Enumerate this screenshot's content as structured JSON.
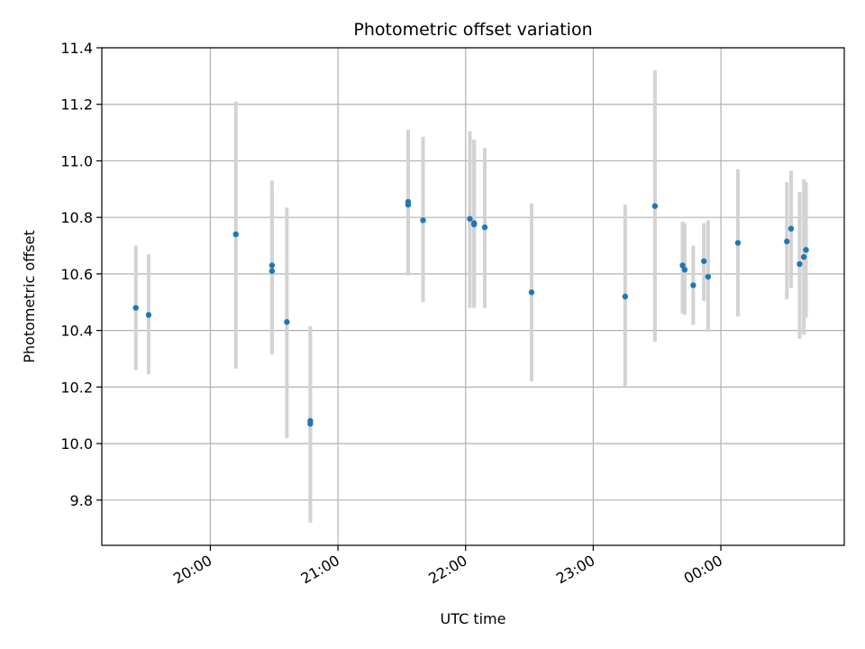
{
  "chart_data": {
    "type": "scatter",
    "title": "Photometric offset variation",
    "xlabel": "UTC time",
    "ylabel": "Photometric offset",
    "xlim": [
      "19:09",
      "00:58"
    ],
    "ylim": [
      9.64,
      11.4
    ],
    "x_ticks": [
      "20:00",
      "21:00",
      "22:00",
      "23:00",
      "00:00"
    ],
    "y_ticks": [
      "9.8",
      "10.0",
      "10.2",
      "10.4",
      "10.6",
      "10.8",
      "11.0",
      "11.2",
      "11.4"
    ],
    "grid": true,
    "colors": {
      "points": "#1f77b4",
      "error_bars": "#d3d3d3"
    },
    "points": [
      {
        "x": "19:25",
        "y": 10.48,
        "err_low": 10.26,
        "err_high": 10.7
      },
      {
        "x": "19:31",
        "y": 10.455,
        "err_low": 10.245,
        "err_high": 10.67
      },
      {
        "x": "20:12",
        "y": 10.74,
        "err_low": 10.265,
        "err_high": 11.21
      },
      {
        "x": "20:29",
        "y": 10.63,
        "err_low": 10.33,
        "err_high": 10.93
      },
      {
        "x": "20:29",
        "y": 10.61,
        "err_low": 10.315,
        "err_high": 10.9
      },
      {
        "x": "20:36",
        "y": 10.43,
        "err_low": 10.02,
        "err_high": 10.835
      },
      {
        "x": "20:47",
        "y": 10.08,
        "err_low": 9.72,
        "err_high": 10.415
      },
      {
        "x": "20:47",
        "y": 10.07,
        "err_low": 9.73,
        "err_high": 10.405
      },
      {
        "x": "21:33",
        "y": 10.855,
        "err_low": 10.595,
        "err_high": 11.11
      },
      {
        "x": "21:33",
        "y": 10.845,
        "err_low": 10.6,
        "err_high": 11.1
      },
      {
        "x": "21:40",
        "y": 10.79,
        "err_low": 10.5,
        "err_high": 11.085
      },
      {
        "x": "22:02",
        "y": 10.795,
        "err_low": 10.48,
        "err_high": 11.105
      },
      {
        "x": "22:04",
        "y": 10.78,
        "err_low": 10.48,
        "err_high": 11.075
      },
      {
        "x": "22:04",
        "y": 10.775,
        "err_low": 10.49,
        "err_high": 11.07
      },
      {
        "x": "22:09",
        "y": 10.765,
        "err_low": 10.48,
        "err_high": 11.045
      },
      {
        "x": "22:31",
        "y": 10.535,
        "err_low": 10.22,
        "err_high": 10.85
      },
      {
        "x": "23:15",
        "y": 10.52,
        "err_low": 10.2,
        "err_high": 10.845
      },
      {
        "x": "23:29",
        "y": 10.84,
        "err_low": 10.36,
        "err_high": 11.32
      },
      {
        "x": "23:42",
        "y": 10.63,
        "err_low": 10.46,
        "err_high": 10.785
      },
      {
        "x": "23:43",
        "y": 10.615,
        "err_low": 10.455,
        "err_high": 10.78
      },
      {
        "x": "23:47",
        "y": 10.56,
        "err_low": 10.42,
        "err_high": 10.7
      },
      {
        "x": "23:52",
        "y": 10.645,
        "err_low": 10.505,
        "err_high": 10.78
      },
      {
        "x": "23:54",
        "y": 10.59,
        "err_low": 10.395,
        "err_high": 10.79
      },
      {
        "x": "00:08",
        "y": 10.71,
        "err_low": 10.45,
        "err_high": 10.97
      },
      {
        "x": "00:31",
        "y": 10.715,
        "err_low": 10.51,
        "err_high": 10.925
      },
      {
        "x": "00:33",
        "y": 10.76,
        "err_low": 10.55,
        "err_high": 10.965
      },
      {
        "x": "00:37",
        "y": 10.635,
        "err_low": 10.37,
        "err_high": 10.89
      },
      {
        "x": "00:39",
        "y": 10.66,
        "err_low": 10.385,
        "err_high": 10.935
      },
      {
        "x": "00:40",
        "y": 10.685,
        "err_low": 10.445,
        "err_high": 10.925
      }
    ]
  }
}
